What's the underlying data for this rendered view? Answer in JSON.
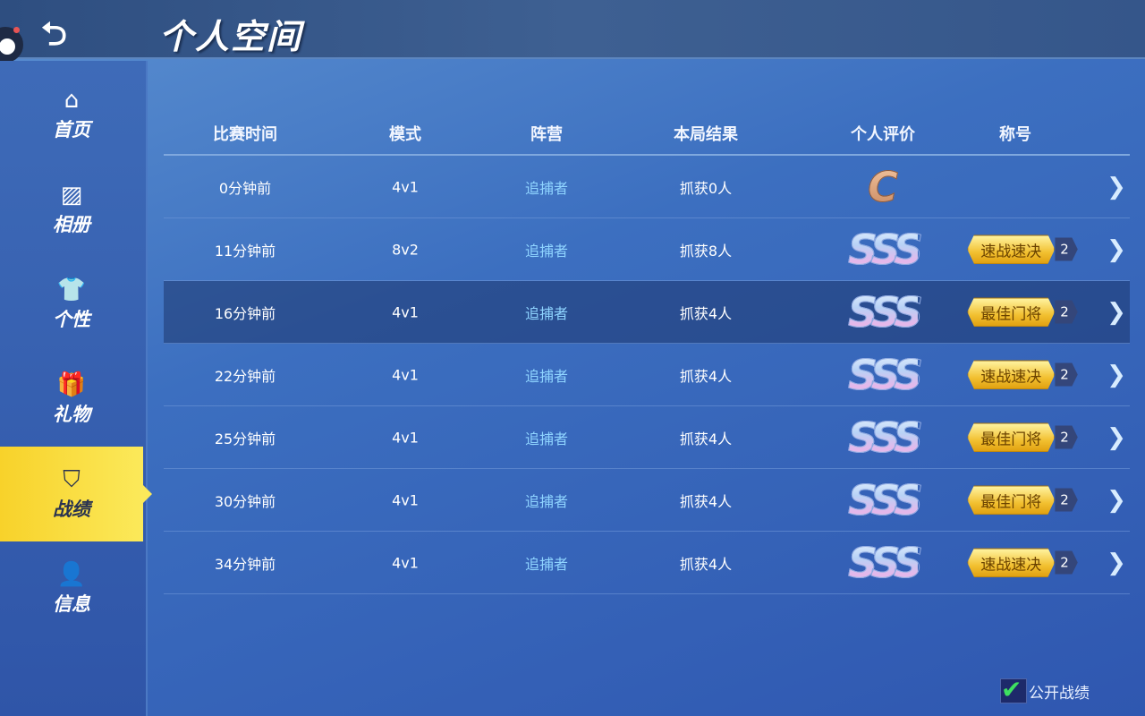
{
  "header": {
    "title": "个人空间",
    "back_icon": "return-arrow-icon"
  },
  "sidebar": {
    "items": [
      {
        "label": "首页",
        "icon": "⌂",
        "icon_name": "home-icon"
      },
      {
        "label": "相册",
        "icon": "▨",
        "icon_name": "image-icon"
      },
      {
        "label": "个性",
        "icon": "👕",
        "icon_name": "shirt-icon"
      },
      {
        "label": "礼物",
        "icon": "🎁",
        "icon_name": "gift-icon"
      },
      {
        "label": "战绩",
        "icon": "⛉",
        "icon_name": "badge-icon",
        "active": true
      },
      {
        "label": "信息",
        "icon": "👤",
        "icon_name": "user-icon"
      }
    ]
  },
  "table": {
    "headers": [
      "比赛时间",
      "模式",
      "阵营",
      "本局结果",
      "个人评价",
      "称号"
    ],
    "rows": [
      {
        "time": "0分钟前",
        "mode": "4v1",
        "camp": "追捕者",
        "result": "抓获0人",
        "grade": "C",
        "title": "",
        "count": ""
      },
      {
        "time": "11分钟前",
        "mode": "8v2",
        "camp": "追捕者",
        "result": "抓获8人",
        "grade": "SSS",
        "title": "速战速决",
        "count": "2"
      },
      {
        "time": "16分钟前",
        "mode": "4v1",
        "camp": "追捕者",
        "result": "抓获4人",
        "grade": "SSS",
        "title": "最佳门将",
        "count": "2",
        "highlighted": true
      },
      {
        "time": "22分钟前",
        "mode": "4v1",
        "camp": "追捕者",
        "result": "抓获4人",
        "grade": "SSS",
        "title": "速战速决",
        "count": "2"
      },
      {
        "time": "25分钟前",
        "mode": "4v1",
        "camp": "追捕者",
        "result": "抓获4人",
        "grade": "SSS",
        "title": "最佳门将",
        "count": "2"
      },
      {
        "time": "30分钟前",
        "mode": "4v1",
        "camp": "追捕者",
        "result": "抓获4人",
        "grade": "SSS",
        "title": "最佳门将",
        "count": "2"
      },
      {
        "time": "34分钟前",
        "mode": "4v1",
        "camp": "追捕者",
        "result": "抓获4人",
        "grade": "SSS",
        "title": "速战速决",
        "count": "2"
      }
    ]
  },
  "footer": {
    "public_label": "公开战绩",
    "public_checked": true
  },
  "colors": {
    "active_nav": "#f8d22a",
    "camp_text": "#8fd4ff",
    "check": "#3ee060"
  }
}
